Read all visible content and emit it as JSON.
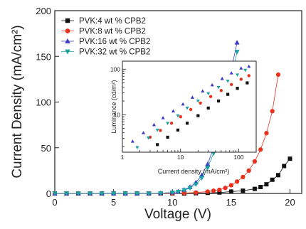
{
  "chart_data": [
    {
      "type": "line",
      "xlabel": "Voltage (V)",
      "ylabel": "Current Density (mA/cm²)",
      "xlim": [
        0,
        21
      ],
      "ylim": [
        0,
        200
      ],
      "xticks": [
        0,
        5,
        10,
        15,
        20
      ],
      "yticks": [
        0,
        50,
        100,
        150,
        200
      ],
      "x_tick_labels": [
        "0",
        "5",
        "10",
        "15",
        "20"
      ],
      "y_tick_labels": [
        "0",
        "50",
        "100",
        "150",
        "200"
      ],
      "legend_position": "top-left",
      "series": [
        {
          "name": "PVK:4 wt % CPB2",
          "color": "#111111",
          "marker": "square",
          "x": [
            0,
            1,
            2,
            3,
            4,
            5,
            6,
            7,
            8,
            9,
            10,
            11,
            12,
            13,
            14,
            15,
            16,
            17,
            17.5,
            18,
            18.5,
            19,
            19.5,
            20
          ],
          "y": [
            0,
            0,
            0,
            0,
            0,
            0,
            0,
            0,
            0,
            0,
            0,
            0,
            0.3,
            0.6,
            1,
            2,
            3,
            5,
            7,
            10,
            15,
            20,
            30,
            38
          ]
        },
        {
          "name": "PVK:8 wt % CPB2",
          "color": "#e8321e",
          "marker": "circle",
          "x": [
            0,
            1,
            2,
            3,
            4,
            5,
            6,
            7,
            8,
            9,
            10,
            11,
            12,
            13,
            13.5,
            14,
            14.5,
            15,
            15.5,
            16,
            16.5,
            17,
            17.5,
            18,
            18.5,
            19
          ],
          "y": [
            0,
            0,
            0,
            0,
            0,
            0,
            0,
            0,
            0,
            0,
            0,
            0.5,
            1,
            2,
            3,
            4,
            6,
            9,
            13,
            18,
            25,
            35,
            48,
            66,
            90,
            130
          ]
        },
        {
          "name": "PVK:16 wt % CPB2",
          "color": "#3a3ac8",
          "marker": "triangle-up",
          "x": [
            0,
            1,
            2,
            3,
            4,
            5,
            6,
            7,
            8,
            9,
            10,
            10.5,
            11,
            11.5,
            12,
            12.5,
            13,
            13.5,
            14,
            14.5,
            15,
            15.5
          ],
          "y": [
            0,
            0,
            0,
            0,
            0,
            0,
            0,
            0,
            0,
            0.3,
            1,
            2,
            4,
            7,
            12,
            20,
            32,
            50,
            75,
            105,
            135,
            165
          ]
        },
        {
          "name": "PVK:32 wt % CPB2",
          "color": "#1aa3a0",
          "marker": "triangle-down",
          "x": [
            0,
            1,
            2,
            3,
            4,
            5,
            6,
            7,
            8,
            9,
            10,
            10.5,
            11,
            11.5,
            12,
            12.5,
            13,
            13.5,
            14,
            14.5,
            15,
            15.5
          ],
          "y": [
            0,
            0,
            0,
            0,
            0,
            0,
            0,
            0,
            0,
            0.3,
            1,
            2,
            3.5,
            6,
            10,
            17,
            28,
            44,
            67,
            95,
            125,
            155
          ]
        }
      ]
    },
    {
      "type": "scatter",
      "role": "inset",
      "xlabel": "Current density (mA/cm²)",
      "ylabel": "Luminance (cd/m²)",
      "xscale": "log",
      "yscale": "log",
      "xlim": [
        1,
        200
      ],
      "ylim": [
        1.5,
        150
      ],
      "xticks": [
        1,
        10,
        100
      ],
      "yticks": [
        10,
        100
      ],
      "x_tick_labels": [
        "1",
        "10",
        "100"
      ],
      "y_tick_labels": [
        "10",
        "100"
      ],
      "series": [
        {
          "name": "PVK:4 wt % CPB2",
          "color": "#111111",
          "marker": "square",
          "x": [
            4,
            6,
            9,
            13,
            20,
            30,
            45,
            65,
            95,
            140
          ],
          "y": [
            2.2,
            3.2,
            4.6,
            6.5,
            9.5,
            14,
            20,
            28,
            38,
            50
          ]
        },
        {
          "name": "PVK:8 wt % CPB2",
          "color": "#e8321e",
          "marker": "circle",
          "x": [
            3,
            4.5,
            7,
            10,
            15,
            22,
            33,
            50,
            75,
            110,
            150
          ],
          "y": [
            3.2,
            4.5,
            6.5,
            9,
            13,
            18,
            25,
            34,
            46,
            60,
            72
          ]
        },
        {
          "name": "PVK:16 wt % CPB2",
          "color": "#3a3ac8",
          "marker": "triangle-up",
          "x": [
            1.5,
            2.3,
            3.5,
            5,
            7.5,
            11,
            16,
            24,
            35,
            52,
            75,
            110,
            150
          ],
          "y": [
            2.6,
            4,
            6,
            8.5,
            12,
            17,
            24,
            33,
            45,
            62,
            82,
            105,
            115
          ]
        },
        {
          "name": "PVK:32 wt % CPB2",
          "color": "#1aa3a0",
          "marker": "triangle-down",
          "x": [
            1.8,
            2.8,
            4,
            6,
            9,
            13,
            20,
            30,
            45,
            65,
            95,
            130
          ],
          "y": [
            1.9,
            3.1,
            4.6,
            6.5,
            9.5,
            14,
            20,
            29,
            40,
            55,
            75,
            95
          ]
        }
      ]
    }
  ]
}
